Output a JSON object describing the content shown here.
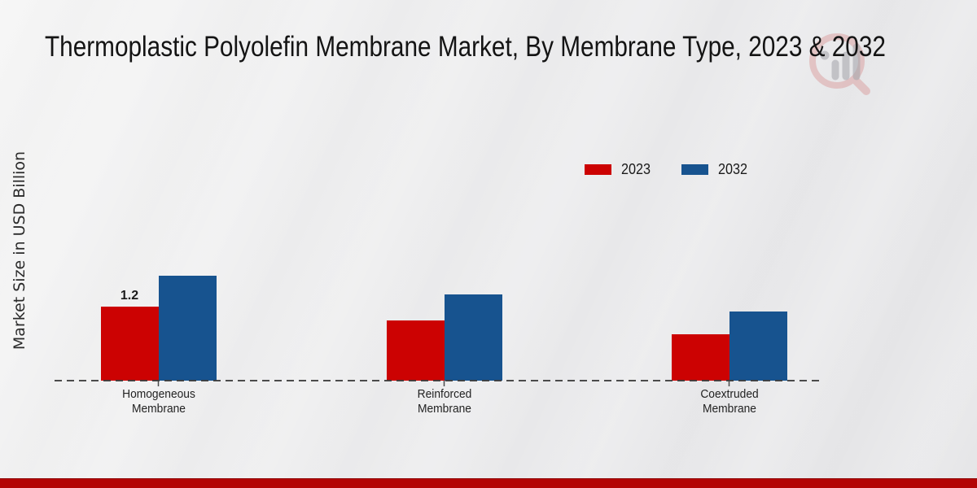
{
  "chart_data": {
    "type": "bar",
    "title": "Thermoplastic Polyolefin Membrane Market, By Membrane Type, 2023 & 2032",
    "ylabel": "Market Size in USD Billion",
    "unit": "USD Billion",
    "categories": [
      "Homogeneous Membrane",
      "Reinforced Membrane",
      "Coextruded Membrane"
    ],
    "series": [
      {
        "name": "2023",
        "color": "#cc0202",
        "values": [
          1.2,
          0.98,
          0.75
        ],
        "labels": [
          "1.2",
          "",
          ""
        ]
      },
      {
        "name": "2032",
        "color": "#17538f",
        "values": [
          1.7,
          1.4,
          1.12
        ],
        "labels": [
          "",
          "",
          ""
        ]
      }
    ],
    "ylim": [
      0,
      2
    ],
    "grid": false,
    "axis_ticks_visible": false,
    "baseline_style": "dashed",
    "legend_position": "top-right-of-plot"
  },
  "annotations": [
    {
      "series": "2023",
      "category": "Homogeneous Membrane",
      "text": "1.2"
    }
  ],
  "branding": {
    "watermark_icon": "magnifier-bar-chart-logo",
    "footer_band_color": "#b30505",
    "bar_red": "#cc0202",
    "bar_blue": "#17538f"
  }
}
